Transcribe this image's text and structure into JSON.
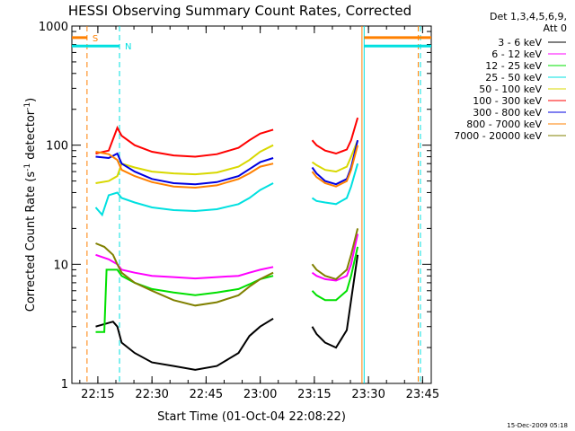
{
  "chart_data": {
    "type": "line",
    "title": "HESSI Observing Summary Count Rates, Corrected",
    "xlabel": "Start Time (01-Oct-04 22:08:22)",
    "ylabel_main": "Corrected Count Rate (s",
    "ylabel_sup1": "-1",
    "ylabel_mid": " detector",
    "ylabel_sup2": "-1",
    "ylabel_end": ")",
    "yscale": "log",
    "ylim": [
      1,
      1000
    ],
    "xlim_minutes": [
      22.13,
      23.79
    ],
    "x_unit": "hours (decimal, UT)",
    "x_ticks": [
      {
        "x": 22.25,
        "label": "22:15"
      },
      {
        "x": 22.5,
        "label": "22:30"
      },
      {
        "x": 22.75,
        "label": "22:45"
      },
      {
        "x": 23.0,
        "label": "23:00"
      },
      {
        "x": 23.25,
        "label": "23:15"
      },
      {
        "x": 23.5,
        "label": "23:30"
      },
      {
        "x": 23.75,
        "label": "23:45"
      }
    ],
    "y_ticks": [
      {
        "y": 1,
        "label": "1"
      },
      {
        "y": 10,
        "label": "10"
      },
      {
        "y": 100,
        "label": "100"
      },
      {
        "y": 1000,
        "label": "1000"
      }
    ],
    "legend_header": [
      "Det 1,3,4,5,6,9,",
      "Att 0"
    ],
    "markers": [
      {
        "x": 22.2,
        "label": "S",
        "color": "#ff8000",
        "y": 800
      },
      {
        "x": 22.35,
        "label": "N",
        "color": "#00e0e0",
        "y": 680
      }
    ],
    "series": [
      {
        "name": "3 - 6 keV",
        "color": "#000000",
        "x": [
          22.24,
          22.32,
          22.34,
          22.36,
          22.42,
          22.5,
          22.6,
          22.7,
          22.8,
          22.9,
          22.95,
          23.0,
          23.06,
          23.24,
          23.26,
          23.3,
          23.35,
          23.4,
          23.42,
          23.45
        ],
        "y": [
          3.0,
          3.3,
          3.0,
          2.2,
          1.8,
          1.5,
          1.4,
          1.3,
          1.4,
          1.8,
          2.5,
          3.0,
          3.5,
          3.0,
          2.6,
          2.2,
          2.0,
          2.8,
          5.0,
          12.0
        ]
      },
      {
        "name": "6 - 12 keV",
        "color": "#ff00ff",
        "x": [
          22.24,
          22.3,
          22.34,
          22.36,
          22.42,
          22.5,
          22.6,
          22.7,
          22.8,
          22.9,
          22.95,
          23.0,
          23.06,
          23.24,
          23.26,
          23.3,
          23.35,
          23.4,
          23.42,
          23.45
        ],
        "y": [
          12.0,
          11.0,
          10.0,
          9.0,
          8.5,
          8.0,
          7.8,
          7.6,
          7.8,
          8.0,
          8.5,
          9.0,
          9.5,
          8.5,
          8.0,
          7.5,
          7.3,
          8.0,
          10.0,
          18.0
        ]
      },
      {
        "name": "12 - 25 keV",
        "color": "#00e000",
        "x": [
          22.24,
          22.28,
          22.29,
          22.34,
          22.36,
          22.42,
          22.5,
          22.6,
          22.7,
          22.8,
          22.9,
          22.95,
          23.0,
          23.06,
          23.24,
          23.26,
          23.3,
          23.35,
          23.4,
          23.42,
          23.45
        ],
        "y": [
          2.7,
          2.7,
          9.0,
          9.0,
          8.0,
          7.0,
          6.2,
          5.8,
          5.5,
          5.8,
          6.2,
          6.8,
          7.5,
          8.0,
          6.0,
          5.5,
          5.0,
          5.0,
          6.0,
          8.0,
          14.0
        ]
      },
      {
        "name": "25 - 50 keV",
        "color": "#00e0e0",
        "x": [
          22.24,
          22.27,
          22.3,
          22.34,
          22.36,
          22.42,
          22.5,
          22.6,
          22.7,
          22.8,
          22.9,
          22.95,
          23.0,
          23.06,
          23.24,
          23.26,
          23.3,
          23.35,
          23.4,
          23.42,
          23.45
        ],
        "y": [
          30.0,
          26.0,
          38.0,
          40.0,
          36.0,
          33.0,
          30.0,
          28.5,
          28.0,
          29.0,
          32.0,
          36.0,
          42.0,
          48.0,
          36.0,
          34.0,
          33.0,
          32.0,
          36.0,
          45.0,
          70.0
        ]
      },
      {
        "name": "50 - 100 keV",
        "color": "#d8d800",
        "x": [
          22.24,
          22.3,
          22.34,
          22.36,
          22.42,
          22.5,
          22.6,
          22.7,
          22.8,
          22.9,
          22.95,
          23.0,
          23.06,
          23.24,
          23.26,
          23.3,
          23.35,
          23.4,
          23.42,
          23.45
        ],
        "y": [
          48.0,
          50.0,
          55.0,
          70.0,
          65.0,
          60.0,
          58.0,
          57.0,
          59.0,
          66.0,
          75.0,
          88.0,
          100.0,
          72.0,
          68.0,
          62.0,
          60.0,
          66.0,
          80.0,
          110.0
        ]
      },
      {
        "name": "100 - 300 keV",
        "color": "#ff0000",
        "x": [
          22.24,
          22.3,
          22.34,
          22.36,
          22.42,
          22.5,
          22.6,
          22.7,
          22.8,
          22.9,
          22.95,
          23.0,
          23.06,
          23.24,
          23.26,
          23.3,
          23.35,
          23.4,
          23.42,
          23.45
        ],
        "y": [
          85.0,
          90.0,
          140.0,
          120.0,
          100.0,
          88.0,
          82.0,
          80.0,
          84.0,
          95.0,
          110.0,
          125.0,
          135.0,
          110.0,
          100.0,
          90.0,
          85.0,
          92.0,
          110.0,
          170.0
        ]
      },
      {
        "name": "300 - 800 keV",
        "color": "#0000e0",
        "x": [
          22.24,
          22.3,
          22.34,
          22.36,
          22.42,
          22.5,
          22.6,
          22.7,
          22.8,
          22.9,
          22.95,
          23.0,
          23.06,
          23.24,
          23.26,
          23.3,
          23.35,
          23.4,
          23.42,
          23.45
        ],
        "y": [
          80.0,
          78.0,
          85.0,
          70.0,
          60.0,
          52.0,
          48.0,
          47.0,
          49.0,
          55.0,
          63.0,
          72.0,
          78.0,
          65.0,
          58.0,
          50.0,
          47.0,
          52.0,
          65.0,
          110.0
        ]
      },
      {
        "name": "800 - 7000 keV",
        "color": "#ff8000",
        "x": [
          22.24,
          22.3,
          22.34,
          22.36,
          22.42,
          22.5,
          22.6,
          22.7,
          22.8,
          22.9,
          22.95,
          23.0,
          23.06,
          23.24,
          23.26,
          23.3,
          23.35,
          23.4,
          23.42,
          23.45
        ],
        "y": [
          88.0,
          84.0,
          75.0,
          62.0,
          55.0,
          49.0,
          45.0,
          44.0,
          46.0,
          52.0,
          58.0,
          66.0,
          70.0,
          60.0,
          54.0,
          48.0,
          45.0,
          50.0,
          62.0,
          100.0
        ]
      },
      {
        "name": "7000 - 20000 keV",
        "color": "#808000",
        "x": [
          22.24,
          22.28,
          22.32,
          22.34,
          22.36,
          22.42,
          22.5,
          22.6,
          22.7,
          22.8,
          22.9,
          22.95,
          23.0,
          23.06,
          23.24,
          23.26,
          23.3,
          23.35,
          23.4,
          23.42,
          23.45
        ],
        "y": [
          15.0,
          14.0,
          12.0,
          10.0,
          8.5,
          7.0,
          6.0,
          5.0,
          4.5,
          4.8,
          5.5,
          6.5,
          7.5,
          8.5,
          10.0,
          9.0,
          8.0,
          7.5,
          9.0,
          12.0,
          20.0
        ]
      }
    ],
    "attenuator_segments": [
      {
        "x0": 22.13,
        "x1": 22.2,
        "y": 800,
        "color": "#ff8000"
      },
      {
        "x0": 22.13,
        "x1": 22.35,
        "y": 680,
        "color": "#00e0e0"
      },
      {
        "x0": 23.48,
        "x1": 23.79,
        "y": 800,
        "color": "#ff8000"
      },
      {
        "x0": 23.48,
        "x1": 23.79,
        "y": 680,
        "color": "#00e0e0"
      }
    ],
    "vlines": [
      {
        "x": 22.2,
        "color": "#ff8000",
        "dash": true
      },
      {
        "x": 22.35,
        "color": "#00e0e0",
        "dash": true
      },
      {
        "x": 23.47,
        "color": "#ff8000",
        "dash": false
      },
      {
        "x": 23.48,
        "color": "#00e0e0",
        "dash": false
      },
      {
        "x": 23.73,
        "color": "#ff8000",
        "dash": true
      },
      {
        "x": 23.74,
        "color": "#00e0e0",
        "dash": true
      }
    ],
    "datestamp": "15-Dec-2009 05:18"
  }
}
